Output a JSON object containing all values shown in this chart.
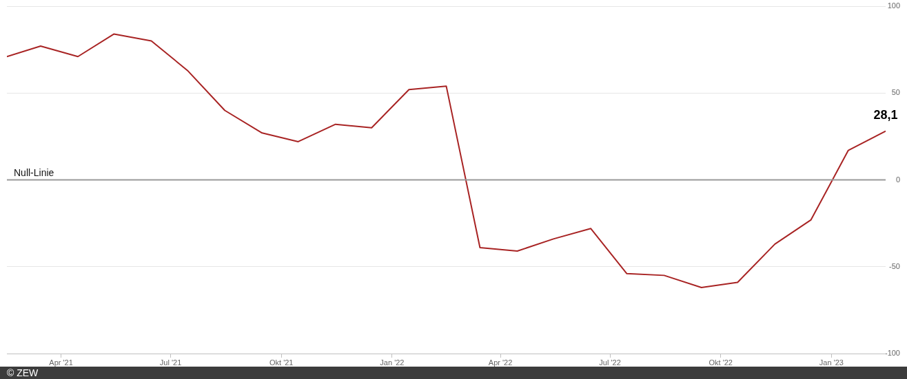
{
  "chart_data": {
    "type": "line",
    "x": [
      "2021-02-15",
      "2021-03-15",
      "2021-04-15",
      "2021-05-15",
      "2021-06-15",
      "2021-07-15",
      "2021-08-15",
      "2021-09-15",
      "2021-10-15",
      "2021-11-15",
      "2021-12-15",
      "2022-01-15",
      "2022-02-15",
      "2022-03-15",
      "2022-04-15",
      "2022-05-15",
      "2022-06-15",
      "2022-07-15",
      "2022-08-15",
      "2022-09-15",
      "2022-10-15",
      "2022-11-15",
      "2022-12-15",
      "2023-01-15",
      "2023-02-15"
    ],
    "values": [
      71,
      77,
      71,
      84,
      80,
      63,
      40,
      27,
      22,
      32,
      30,
      52,
      54,
      -39,
      -41,
      -34,
      -28,
      -54,
      -55,
      -62,
      -59,
      -37,
      -23,
      17,
      28.1
    ],
    "value_labels": [
      null,
      null,
      null,
      null,
      null,
      null,
      null,
      null,
      null,
      null,
      null,
      null,
      null,
      null,
      null,
      null,
      null,
      null,
      null,
      null,
      null,
      null,
      null,
      null,
      "28,1"
    ],
    "color": "#a82323",
    "xlim": [
      "2021-02-15",
      "2023-02-15"
    ],
    "xticks": [
      {
        "value": "2021-04-01",
        "label": "Apr '21"
      },
      {
        "value": "2021-07-01",
        "label": "Jul '21"
      },
      {
        "value": "2021-10-01",
        "label": "Okt '21"
      },
      {
        "value": "2022-01-01",
        "label": "Jan '22"
      },
      {
        "value": "2022-04-01",
        "label": "Apr '22"
      },
      {
        "value": "2022-07-01",
        "label": "Jul '22"
      },
      {
        "value": "2022-10-01",
        "label": "Okt '22"
      },
      {
        "value": "2023-01-01",
        "label": "Jan '23"
      }
    ],
    "ylim": [
      -100,
      100
    ],
    "yticks": [
      -100,
      -50,
      0,
      50,
      100
    ],
    "grid": "y",
    "legend": false,
    "marker": "none",
    "line_style": "solid",
    "ref_lines": [
      {
        "axis": "y",
        "value": 0,
        "label": "Null-Linie",
        "color": "#999999"
      }
    ],
    "annotations": [
      "© ZEW"
    ]
  }
}
